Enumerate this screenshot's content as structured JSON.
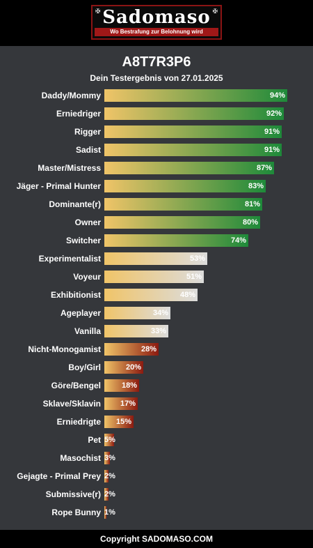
{
  "logo": {
    "word": "Sadomaso",
    "tagline": "Wo Bestrafung zur Belohnung wird"
  },
  "title": "A8T7R3P6",
  "subtitle": "Dein Testergebnis von 27.01.2025",
  "footer": "Copyright SADOMASO.COM",
  "colors": {
    "bar_start": "#f0c468",
    "high_end": "#1e8a3a",
    "mid_end": "#dcdcdc",
    "low_end": "#8b1a10"
  },
  "chart_data": {
    "type": "bar",
    "orientation": "horizontal",
    "xlim": [
      0,
      100
    ],
    "categories": [
      "Daddy/Mommy",
      "Erniedriger",
      "Rigger",
      "Sadist",
      "Master/Mistress",
      "Jäger - Primal Hunter",
      "Dominante(r)",
      "Owner",
      "Switcher",
      "Experimentalist",
      "Voyeur",
      "Exhibitionist",
      "Ageplayer",
      "Vanilla",
      "Nicht-Monogamist",
      "Boy/Girl",
      "Göre/Bengel",
      "Sklave/Sklavin",
      "Erniedrigte",
      "Pet",
      "Masochist",
      "Gejagte - Primal Prey",
      "Submissive(r)",
      "Rope Bunny"
    ],
    "values": [
      94,
      92,
      91,
      91,
      87,
      83,
      81,
      80,
      74,
      53,
      51,
      48,
      34,
      33,
      28,
      20,
      18,
      17,
      15,
      5,
      3,
      2,
      2,
      1
    ],
    "value_labels": [
      "94%",
      "92%",
      "91%",
      "91%",
      "87%",
      "83%",
      "81%",
      "80%",
      "74%",
      "53%",
      "51%",
      "48%",
      "34%",
      "33%",
      "28%",
      "20%",
      "18%",
      "17%",
      "15%",
      "5%",
      "3%",
      "2%",
      "2%",
      "1%"
    ]
  }
}
